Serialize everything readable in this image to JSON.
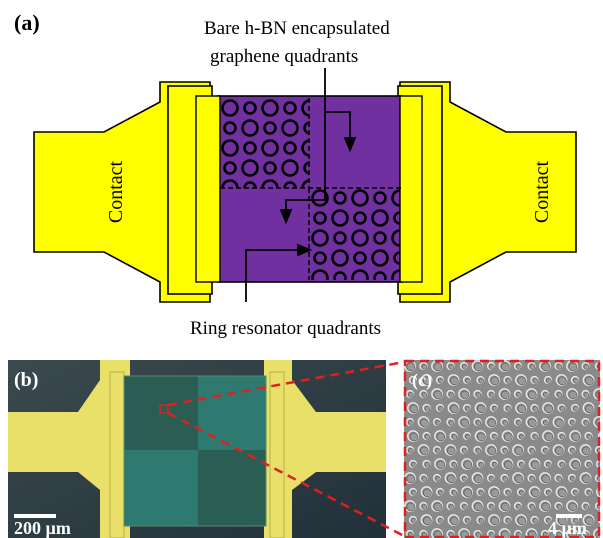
{
  "panel_a": {
    "label": "(a)",
    "top_annotation_line1": "Bare h-BN encapsulated",
    "top_annotation_line2": "graphene quadrants",
    "bottom_annotation": "Ring resonator quadrants",
    "left_contact_label": "Contact",
    "right_contact_label": "Contact",
    "colors": {
      "contact_fill": "#ffff00",
      "device_fill": "#7030a0",
      "outline": "#000000"
    }
  },
  "panel_b": {
    "label": "(b)",
    "scale_bar_label": "200 µm",
    "colors": {
      "background": "#2a3a40",
      "contact": "#e8e068",
      "graphene": "#2e7a6a"
    }
  },
  "panel_c": {
    "label": "(c)",
    "scale_bar_label": "4 µm",
    "colors": {
      "background": "#8a8a8a",
      "zoom_lines": "#e02020"
    }
  }
}
